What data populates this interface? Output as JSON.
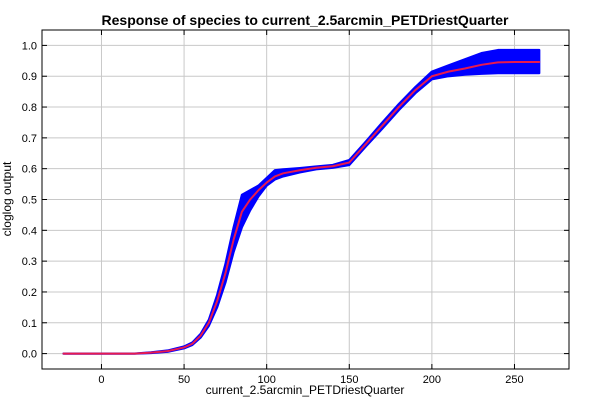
{
  "chart_data": {
    "type": "area",
    "title": "Response of species to current_2.5arcmin_PETDriestQuarter",
    "xlabel": "current_2.5arcmin_PETDriestQuarter",
    "ylabel": "cloglog output",
    "xlim": [
      -36,
      283
    ],
    "ylim": [
      -0.05,
      1.05
    ],
    "xticks": [
      0,
      50,
      100,
      150,
      200,
      250
    ],
    "yticks": [
      0.0,
      0.1,
      0.2,
      0.3,
      0.4,
      0.5,
      0.6,
      0.7,
      0.8,
      0.9,
      1.0
    ],
    "grid": true,
    "colors": {
      "band": "#0000ff",
      "line": "#e8194f"
    },
    "series": [
      {
        "role": "mean",
        "x": [
          -23,
          0,
          20,
          30,
          40,
          50,
          55,
          60,
          65,
          70,
          75,
          80,
          85,
          90,
          95,
          100,
          105,
          110,
          120,
          130,
          140,
          150,
          160,
          170,
          180,
          190,
          200,
          210,
          220,
          230,
          240,
          250,
          265
        ],
        "y": [
          0.0,
          0.0,
          0.0,
          0.003,
          0.008,
          0.02,
          0.032,
          0.058,
          0.1,
          0.17,
          0.26,
          0.37,
          0.46,
          0.5,
          0.53,
          0.555,
          0.575,
          0.585,
          0.595,
          0.603,
          0.608,
          0.62,
          0.68,
          0.74,
          0.8,
          0.855,
          0.9,
          0.915,
          0.925,
          0.937,
          0.945,
          0.946,
          0.946
        ]
      },
      {
        "role": "upper",
        "x": [
          -23,
          0,
          20,
          30,
          40,
          50,
          55,
          60,
          65,
          70,
          75,
          80,
          85,
          90,
          95,
          100,
          105,
          110,
          120,
          130,
          140,
          150,
          160,
          170,
          180,
          190,
          200,
          210,
          220,
          230,
          240,
          250,
          265
        ],
        "y": [
          0.0,
          0.0,
          0.0,
          0.004,
          0.01,
          0.023,
          0.036,
          0.064,
          0.11,
          0.19,
          0.29,
          0.41,
          0.515,
          0.53,
          0.545,
          0.57,
          0.595,
          0.598,
          0.602,
          0.607,
          0.612,
          0.628,
          0.688,
          0.75,
          0.81,
          0.865,
          0.915,
          0.935,
          0.955,
          0.975,
          0.985,
          0.985,
          0.985
        ]
      },
      {
        "role": "lower",
        "x": [
          -23,
          0,
          20,
          30,
          40,
          50,
          55,
          60,
          65,
          70,
          75,
          80,
          85,
          90,
          95,
          100,
          105,
          110,
          120,
          130,
          140,
          150,
          160,
          170,
          180,
          190,
          200,
          210,
          220,
          230,
          240,
          250,
          265
        ],
        "y": [
          0.0,
          0.0,
          0.0,
          0.002,
          0.006,
          0.017,
          0.028,
          0.052,
          0.09,
          0.15,
          0.23,
          0.33,
          0.41,
          0.465,
          0.51,
          0.545,
          0.565,
          0.575,
          0.588,
          0.598,
          0.603,
          0.612,
          0.672,
          0.73,
          0.79,
          0.845,
          0.89,
          0.9,
          0.905,
          0.908,
          0.91,
          0.91,
          0.91
        ]
      }
    ]
  }
}
